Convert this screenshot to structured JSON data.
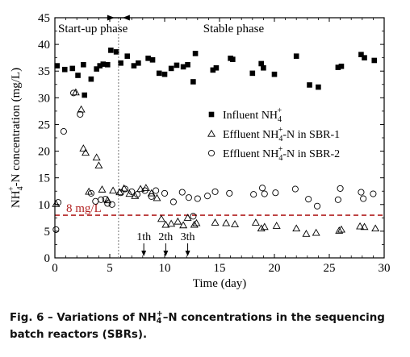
{
  "caption": {
    "label": "Fig. 6 –",
    "text_pre": " Variations of NH",
    "text_sup": "+",
    "text_sub": "4",
    "text_post": "–N concentrations in the sequencing batch reactors (SBRs)."
  },
  "chart_data": {
    "type": "scatter",
    "xlabel": "Time (day)",
    "ylabel": {
      "pre": "NH",
      "sub": "4",
      "sup": "+",
      "post": "-N concentration (mg/L)"
    },
    "xlim": [
      0,
      30
    ],
    "ylim": [
      0,
      45
    ],
    "x_ticks": [
      0,
      5,
      10,
      15,
      20,
      25,
      30
    ],
    "y_ticks": [
      0,
      5,
      10,
      15,
      20,
      25,
      30,
      35,
      40,
      45
    ],
    "grid": false,
    "legend_position": "right",
    "phases": [
      {
        "label": "Start-up phase",
        "x_start": 0,
        "x_end": 5.8
      },
      {
        "label": "Stable phase",
        "x_start": 5.8,
        "x_end": 30
      }
    ],
    "phase_boundary_x": 5.8,
    "threshold": {
      "label": "8 mg/L",
      "y": 8,
      "color": "#b22222"
    },
    "batch_annotations": [
      {
        "label": "1th",
        "x": 8.1
      },
      {
        "label": "2th",
        "x": 10.1
      },
      {
        "label": "3th",
        "x": 12.1
      }
    ],
    "series": [
      {
        "name": {
          "pre": "Influent NH",
          "sub": "4",
          "sup": "+",
          "post": ""
        },
        "marker": "filled-square",
        "points": [
          [
            0.2,
            36.0
          ],
          [
            0.9,
            35.3
          ],
          [
            1.6,
            35.5
          ],
          [
            2.1,
            34.2
          ],
          [
            2.6,
            36.2
          ],
          [
            2.7,
            30.5
          ],
          [
            3.3,
            33.5
          ],
          [
            3.8,
            35.4
          ],
          [
            4.1,
            36.0
          ],
          [
            4.4,
            36.3
          ],
          [
            4.8,
            36.2
          ],
          [
            5.1,
            38.9
          ],
          [
            5.6,
            38.6
          ],
          [
            6.0,
            36.5
          ],
          [
            6.6,
            37.8
          ],
          [
            7.2,
            36.0
          ],
          [
            7.6,
            36.5
          ],
          [
            8.5,
            37.4
          ],
          [
            8.9,
            37.1
          ],
          [
            9.5,
            34.6
          ],
          [
            10.0,
            34.4
          ],
          [
            10.6,
            35.5
          ],
          [
            11.1,
            36.1
          ],
          [
            11.7,
            35.8
          ],
          [
            12.1,
            36.2
          ],
          [
            12.6,
            33.0
          ],
          [
            12.8,
            38.3
          ],
          [
            14.4,
            35.2
          ],
          [
            14.7,
            35.6
          ],
          [
            16.0,
            37.4
          ],
          [
            16.2,
            37.2
          ],
          [
            18.0,
            34.6
          ],
          [
            18.8,
            36.4
          ],
          [
            19.0,
            35.6
          ],
          [
            20.0,
            34.4
          ],
          [
            22.0,
            37.8
          ],
          [
            23.2,
            32.4
          ],
          [
            24.0,
            32.0
          ],
          [
            25.8,
            35.7
          ],
          [
            26.1,
            35.9
          ],
          [
            27.9,
            38.1
          ],
          [
            28.2,
            37.5
          ],
          [
            29.1,
            37.0
          ]
        ]
      },
      {
        "name": {
          "pre": "Effluent NH",
          "sub": "4",
          "sup": "+",
          "post": "-N in SBR-1"
        },
        "marker": "open-triangle",
        "points": [
          [
            0.1,
            10.1
          ],
          [
            1.9,
            31.0
          ],
          [
            2.4,
            27.8
          ],
          [
            2.6,
            20.5
          ],
          [
            2.8,
            19.7
          ],
          [
            3.1,
            12.4
          ],
          [
            3.8,
            18.8
          ],
          [
            4.0,
            17.3
          ],
          [
            4.3,
            12.8
          ],
          [
            4.8,
            10.8
          ],
          [
            5.3,
            12.6
          ],
          [
            5.9,
            12.3
          ],
          [
            6.3,
            13.0
          ],
          [
            6.8,
            12.0
          ],
          [
            7.3,
            11.6
          ],
          [
            7.8,
            12.9
          ],
          [
            8.3,
            13.1
          ],
          [
            8.8,
            12.1
          ],
          [
            9.3,
            11.2
          ],
          [
            9.7,
            7.3
          ],
          [
            10.1,
            6.2
          ],
          [
            10.6,
            6.4
          ],
          [
            11.2,
            6.8
          ],
          [
            11.7,
            6.1
          ],
          [
            12.1,
            7.5
          ],
          [
            12.7,
            6.2
          ],
          [
            12.9,
            6.5
          ],
          [
            14.6,
            6.6
          ],
          [
            15.6,
            6.5
          ],
          [
            16.4,
            6.3
          ],
          [
            18.3,
            6.6
          ],
          [
            18.8,
            5.5
          ],
          [
            19.1,
            5.8
          ],
          [
            20.2,
            6.0
          ],
          [
            22.0,
            5.5
          ],
          [
            22.9,
            4.5
          ],
          [
            23.8,
            4.7
          ],
          [
            25.9,
            5.1
          ],
          [
            26.1,
            5.3
          ],
          [
            27.8,
            5.9
          ],
          [
            28.2,
            5.8
          ],
          [
            29.2,
            5.5
          ]
        ]
      },
      {
        "name": {
          "pre": "Effluent NH",
          "sub": "4",
          "sup": "+",
          "post": "-N in SBR-2"
        },
        "marker": "open-circle",
        "points": [
          [
            0.1,
            5.3
          ],
          [
            0.3,
            10.4
          ],
          [
            0.8,
            23.7
          ],
          [
            1.7,
            30.9
          ],
          [
            2.3,
            26.9
          ],
          [
            3.3,
            12.1
          ],
          [
            3.7,
            10.6
          ],
          [
            4.2,
            10.9
          ],
          [
            4.6,
            11.0
          ],
          [
            4.8,
            10.2
          ],
          [
            5.2,
            10.0
          ],
          [
            6.0,
            12.2
          ],
          [
            6.4,
            12.9
          ],
          [
            7.0,
            12.4
          ],
          [
            7.5,
            11.9
          ],
          [
            8.2,
            12.6
          ],
          [
            8.8,
            11.5
          ],
          [
            9.2,
            12.6
          ],
          [
            10.0,
            12.1
          ],
          [
            10.8,
            10.5
          ],
          [
            11.6,
            12.3
          ],
          [
            12.2,
            11.3
          ],
          [
            12.6,
            7.8
          ],
          [
            13.0,
            11.1
          ],
          [
            13.9,
            11.6
          ],
          [
            14.6,
            12.4
          ],
          [
            15.9,
            12.1
          ],
          [
            18.1,
            11.9
          ],
          [
            18.9,
            13.1
          ],
          [
            19.1,
            12.0
          ],
          [
            20.1,
            12.2
          ],
          [
            21.9,
            12.9
          ],
          [
            23.1,
            11.0
          ],
          [
            23.9,
            9.7
          ],
          [
            25.8,
            10.9
          ],
          [
            26.0,
            13.0
          ],
          [
            27.9,
            12.3
          ],
          [
            28.1,
            11.1
          ],
          [
            29.0,
            12.0
          ]
        ]
      }
    ]
  }
}
